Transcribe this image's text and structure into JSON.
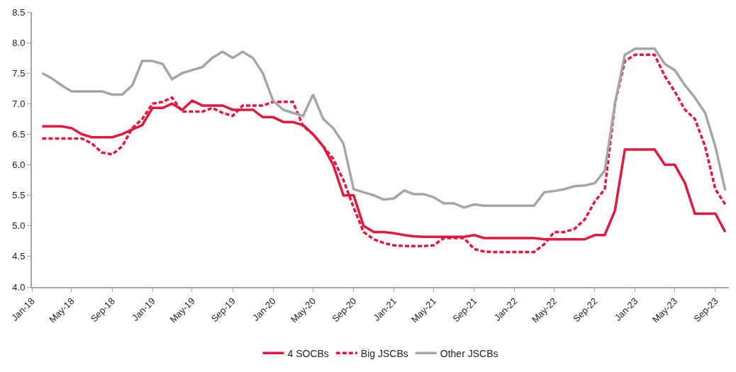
{
  "chart_data": {
    "type": "line",
    "x": [
      "2018-02",
      "2018-03",
      "2018-04",
      "2018-05",
      "2018-06",
      "2018-07",
      "2018-08",
      "2018-09",
      "2018-10",
      "2018-11",
      "2018-12",
      "2019-01",
      "2019-02",
      "2019-03",
      "2019-04",
      "2019-05",
      "2019-06",
      "2019-07",
      "2019-08",
      "2019-09",
      "2019-10",
      "2019-11",
      "2019-12",
      "2020-01",
      "2020-02",
      "2020-03",
      "2020-04",
      "2020-05",
      "2020-06",
      "2020-07",
      "2020-08",
      "2020-09",
      "2020-10",
      "2020-11",
      "2020-12",
      "2021-01",
      "2021-02",
      "2021-03",
      "2021-04",
      "2021-05",
      "2021-06",
      "2021-07",
      "2021-08",
      "2021-09",
      "2021-10",
      "2021-11",
      "2021-12",
      "2022-01",
      "2022-02",
      "2022-03",
      "2022-04",
      "2022-05",
      "2022-06",
      "2022-07",
      "2022-08",
      "2022-09",
      "2022-10",
      "2022-11",
      "2022-12",
      "2023-01",
      "2023-02",
      "2023-03",
      "2023-04",
      "2023-05",
      "2023-06",
      "2023-07",
      "2023-08",
      "2023-09",
      "2023-10"
    ],
    "series": [
      {
        "name": "4 SOCBs",
        "color": "#e4173e",
        "line_style": "solid",
        "values": [
          6.63,
          6.63,
          6.63,
          6.6,
          6.5,
          6.45,
          6.45,
          6.45,
          6.5,
          6.58,
          6.65,
          6.93,
          6.93,
          7.0,
          6.9,
          7.05,
          6.97,
          6.97,
          6.97,
          6.9,
          6.9,
          6.9,
          6.78,
          6.78,
          6.7,
          6.7,
          6.65,
          6.5,
          6.3,
          6.0,
          5.5,
          5.5,
          5.0,
          4.9,
          4.9,
          4.88,
          4.85,
          4.83,
          4.82,
          4.82,
          4.82,
          4.82,
          4.82,
          4.85,
          4.8,
          4.8,
          4.8,
          4.8,
          4.8,
          4.8,
          4.78,
          4.78,
          4.78,
          4.78,
          4.78,
          4.85,
          4.85,
          5.25,
          6.25,
          6.25,
          6.25,
          6.25,
          6.0,
          6.0,
          5.7,
          5.2,
          5.2,
          5.2,
          4.9
        ]
      },
      {
        "name": "Big JSCBs",
        "color": "#e4173e",
        "line_style": "dashed",
        "values": [
          6.43,
          6.43,
          6.43,
          6.43,
          6.43,
          6.35,
          6.2,
          6.17,
          6.3,
          6.6,
          6.75,
          7.0,
          7.03,
          7.1,
          6.87,
          6.87,
          6.87,
          6.93,
          6.85,
          6.8,
          6.97,
          6.97,
          6.97,
          7.03,
          7.03,
          7.03,
          6.63,
          6.5,
          6.3,
          6.1,
          5.75,
          5.3,
          4.9,
          4.78,
          4.72,
          4.68,
          4.67,
          4.67,
          4.67,
          4.68,
          4.8,
          4.8,
          4.8,
          4.62,
          4.58,
          4.57,
          4.57,
          4.57,
          4.57,
          4.57,
          4.7,
          4.9,
          4.9,
          4.95,
          5.1,
          5.4,
          5.6,
          7.0,
          7.7,
          7.8,
          7.8,
          7.8,
          7.45,
          7.2,
          6.9,
          6.75,
          6.3,
          5.6,
          5.35
        ]
      },
      {
        "name": "Other JSCBs",
        "color": "#a6a6a6",
        "line_style": "solid",
        "values": [
          7.5,
          7.42,
          7.3,
          7.2,
          7.2,
          7.2,
          7.2,
          7.15,
          7.15,
          7.3,
          7.7,
          7.7,
          7.65,
          7.4,
          7.5,
          7.55,
          7.6,
          7.75,
          7.85,
          7.75,
          7.85,
          7.75,
          7.5,
          7.05,
          6.9,
          6.85,
          6.8,
          7.15,
          6.75,
          6.6,
          6.35,
          5.6,
          5.55,
          5.5,
          5.43,
          5.45,
          5.58,
          5.52,
          5.52,
          5.47,
          5.37,
          5.37,
          5.3,
          5.35,
          5.33,
          5.33,
          5.33,
          5.33,
          5.33,
          5.33,
          5.55,
          5.57,
          5.6,
          5.65,
          5.66,
          5.7,
          5.9,
          7.0,
          7.8,
          7.9,
          7.9,
          7.9,
          7.65,
          7.55,
          7.3,
          7.1,
          6.85,
          6.3,
          5.58
        ]
      }
    ],
    "xlim": [
      "2018-01-01",
      "2023-10-12"
    ],
    "xticks": [
      {
        "value": "2018-01",
        "label": "Jan-18"
      },
      {
        "value": "2018-05",
        "label": "May-18"
      },
      {
        "value": "2018-09",
        "label": "Sep-18"
      },
      {
        "value": "2019-01",
        "label": "Jan-19"
      },
      {
        "value": "2019-05",
        "label": "May-19"
      },
      {
        "value": "2019-09",
        "label": "Sep-19"
      },
      {
        "value": "2020-01",
        "label": "Jan-20"
      },
      {
        "value": "2020-05",
        "label": "May-20"
      },
      {
        "value": "2020-09",
        "label": "Sep-20"
      },
      {
        "value": "2021-01",
        "label": "Jan-21"
      },
      {
        "value": "2021-05",
        "label": "May-21"
      },
      {
        "value": "2021-09",
        "label": "Sep-21"
      },
      {
        "value": "2022-01",
        "label": "Jan-22"
      },
      {
        "value": "2022-05",
        "label": "May-22"
      },
      {
        "value": "2022-09",
        "label": "Sep-22"
      },
      {
        "value": "2023-01",
        "label": "Jan-23"
      },
      {
        "value": "2023-05",
        "label": "May-23"
      },
      {
        "value": "2023-09",
        "label": "Sep-23"
      }
    ],
    "ylim": [
      4.0,
      8.5
    ],
    "yticks": [
      {
        "value": 4.0,
        "label": "4.0"
      },
      {
        "value": 4.5,
        "label": "4.5"
      },
      {
        "value": 5.0,
        "label": "5.0"
      },
      {
        "value": 5.5,
        "label": "5.5"
      },
      {
        "value": 6.0,
        "label": "6.0"
      },
      {
        "value": 6.5,
        "label": "6.5"
      },
      {
        "value": 7.0,
        "label": "7.0"
      },
      {
        "value": 7.5,
        "label": "7.5"
      },
      {
        "value": 8.0,
        "label": "8.0"
      },
      {
        "value": 8.5,
        "label": "8.5"
      }
    ],
    "legend": "bottom",
    "marker": "none"
  }
}
